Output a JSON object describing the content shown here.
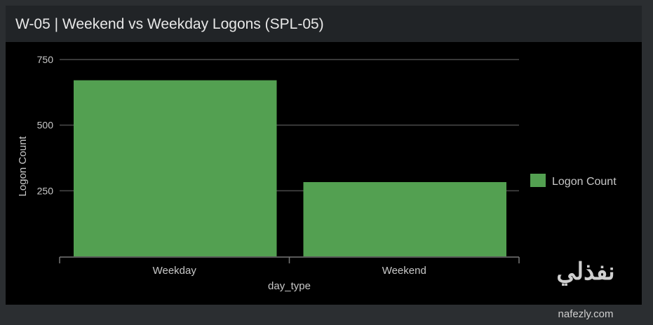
{
  "panel": {
    "title": "W-05 | Weekend vs Weekday Logons (SPL-05)"
  },
  "watermark": {
    "arabic": "نفذلي",
    "latin": "nafezly.com"
  },
  "chart_data": {
    "type": "bar",
    "title": "",
    "categories": [
      "Weekday",
      "Weekend"
    ],
    "series": [
      {
        "name": "Logon Count",
        "values": [
          671,
          283
        ],
        "color": "#53a051"
      }
    ],
    "xlabel": "day_type",
    "ylabel": "Logon Count",
    "ylim": [
      0,
      750
    ],
    "yticks": [
      250,
      500,
      750
    ],
    "grid": true,
    "legend": "right"
  }
}
